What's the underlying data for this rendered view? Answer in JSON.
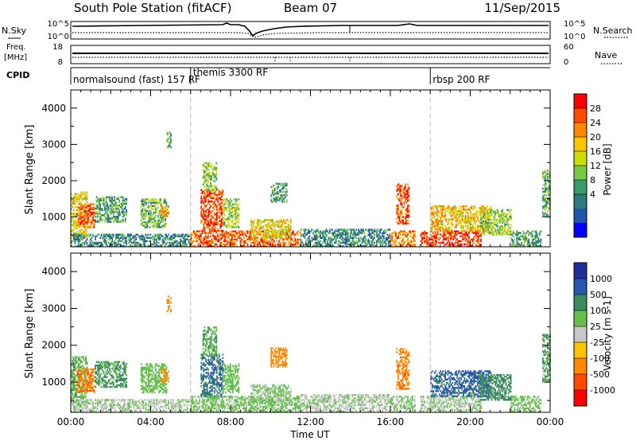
{
  "header": {
    "station": "South Pole Station (fitACF)",
    "beam": "Beam 07",
    "date": "11/Sep/2015"
  },
  "summary": {
    "nsky_label": "N.Sky",
    "nsearch_label": "N.Search",
    "freq_label_line1": "Freq.",
    "freq_label_line2": "[MHz]",
    "freq_ticks": [
      "18",
      "8"
    ],
    "nave_label": "Nave",
    "nave_ticks": [
      "60",
      "0"
    ],
    "noise_ticks": [
      "10^5",
      "10^0"
    ],
    "cpid_label": "CPID",
    "cpid_segments": [
      {
        "name": "normalsound (fast) 157 RF",
        "start_hour": 0
      },
      {
        "name": "themis 3300 RF",
        "start_hour": 6
      },
      {
        "name": "rbsp 200 RF",
        "start_hour": 18
      }
    ]
  },
  "power_panel": {
    "ylabel": "Slant Range [km]",
    "cbar_label": "Power [dB]",
    "cbar_ticks": [
      "28",
      "24",
      "20",
      "16",
      "12",
      "8",
      "4"
    ],
    "cbar_colors": [
      "#ff0000",
      "#ff4a00",
      "#ff8800",
      "#ffc400",
      "#ccdd00",
      "#79c943",
      "#3a9a6a",
      "#2d7a78",
      "#2255aa",
      "#0000ff"
    ]
  },
  "velocity_panel": {
    "ylabel": "Slant Range [km]",
    "cbar_label": "Velocity [m s-1]",
    "cbar_ticks": [
      "1000",
      "500",
      "100",
      "25",
      "-25",
      "-100",
      "-500",
      "-1000"
    ],
    "cbar_colors": [
      "#1f2f99",
      "#2a58b0",
      "#3c8c5e",
      "#64c04a",
      "#c8c8c8",
      "#ffc400",
      "#ff8800",
      "#ff4a00",
      "#ff0000"
    ]
  },
  "xaxis": {
    "label": "Time UT",
    "ticks": [
      "00:00",
      "04:00",
      "08:00",
      "12:00",
      "16:00",
      "20:00",
      "00:00"
    ]
  },
  "chart_data": {
    "type": "heatmap",
    "title": "South Pole Station (fitACF)  Beam 07  11/Sep/2015",
    "xlabel": "Time UT",
    "ylabel": "Slant Range [km]",
    "xlim_hours": [
      0,
      24
    ],
    "ylim_km": [
      180,
      4500
    ],
    "yticks_km": [
      1000,
      2000,
      3000,
      4000
    ],
    "xticks": [
      "00:00",
      "04:00",
      "08:00",
      "12:00",
      "16:00",
      "20:00",
      "00:00"
    ],
    "vertical_markers_hours": [
      6,
      18
    ],
    "power_scale_db": [
      0,
      30
    ],
    "velocity_scale_ms": [
      -1000,
      1000
    ],
    "scatter_regions": [
      {
        "t0": 0.0,
        "t1": 0.8,
        "r0": 400,
        "r1": 1700,
        "power": 18,
        "velocity": 80
      },
      {
        "t0": 0.3,
        "t1": 1.2,
        "r0": 700,
        "r1": 1350,
        "power": 26,
        "velocity": -450
      },
      {
        "t0": 0.0,
        "t1": 6.0,
        "r0": 180,
        "r1": 520,
        "power": 8,
        "velocity": 20
      },
      {
        "t0": 1.2,
        "t1": 2.8,
        "r0": 850,
        "r1": 1550,
        "power": 10,
        "velocity": 120
      },
      {
        "t0": 3.5,
        "t1": 4.8,
        "r0": 700,
        "r1": 1500,
        "power": 12,
        "velocity": 60
      },
      {
        "t0": 4.5,
        "t1": 4.9,
        "r0": 1000,
        "r1": 1350,
        "power": 22,
        "velocity": -300
      },
      {
        "t0": 4.8,
        "t1": 5.0,
        "r0": 2900,
        "r1": 3350,
        "power": 10,
        "velocity": -300
      },
      {
        "t0": 6.0,
        "t1": 11.5,
        "r0": 180,
        "r1": 600,
        "power": 26,
        "velocity": 40
      },
      {
        "t0": 6.5,
        "t1": 7.6,
        "r0": 600,
        "r1": 1750,
        "power": 27,
        "velocity": 500
      },
      {
        "t0": 6.6,
        "t1": 7.3,
        "r0": 1700,
        "r1": 2500,
        "power": 14,
        "velocity": 100
      },
      {
        "t0": 7.6,
        "t1": 8.4,
        "r0": 700,
        "r1": 1500,
        "power": 14,
        "velocity": 60
      },
      {
        "t0": 9.0,
        "t1": 11.0,
        "r0": 400,
        "r1": 900,
        "power": 18,
        "velocity": 30
      },
      {
        "t0": 10.0,
        "t1": 10.8,
        "r0": 1400,
        "r1": 1900,
        "power": 10,
        "velocity": -200
      },
      {
        "t0": 11.5,
        "t1": 16.0,
        "r0": 180,
        "r1": 650,
        "power": 8,
        "velocity": 15
      },
      {
        "t0": 16.3,
        "t1": 16.9,
        "r0": 800,
        "r1": 1900,
        "power": 27,
        "velocity": -400
      },
      {
        "t0": 16.0,
        "t1": 17.2,
        "r0": 180,
        "r1": 600,
        "power": 24,
        "velocity": 30
      },
      {
        "t0": 17.5,
        "t1": 20.5,
        "r0": 180,
        "r1": 600,
        "power": 28,
        "velocity": 20
      },
      {
        "t0": 18.0,
        "t1": 21.0,
        "r0": 600,
        "r1": 1300,
        "power": 20,
        "velocity": 600
      },
      {
        "t0": 20.5,
        "t1": 22.0,
        "r0": 500,
        "r1": 1200,
        "power": 14,
        "velocity": 300
      },
      {
        "t0": 22.0,
        "t1": 23.5,
        "r0": 180,
        "r1": 600,
        "power": 10,
        "velocity": 40
      },
      {
        "t0": 23.6,
        "t1": 24.0,
        "r0": 1000,
        "r1": 2300,
        "power": 12,
        "velocity": 100
      }
    ]
  }
}
